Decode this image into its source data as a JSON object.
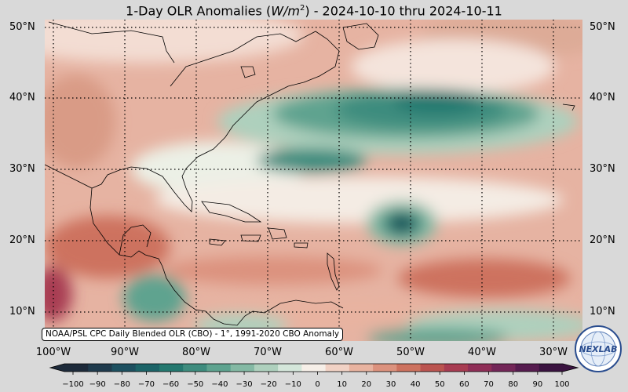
{
  "title": {
    "prefix": "1-Day OLR Anomalies (",
    "unit_main": "W/m",
    "unit_exp": "2",
    "suffix": ") - 2024-10-10 thru 2024-10-11"
  },
  "latitudes_left": [
    "50°N",
    "40°N",
    "30°N",
    "20°N",
    "10°N"
  ],
  "latitudes_right": [
    "50°N",
    "40°N",
    "30°N",
    "20°N",
    "10°N"
  ],
  "longitudes": [
    "100°W",
    "90°W",
    "80°W",
    "70°W",
    "60°W",
    "50°W",
    "40°W",
    "30°W"
  ],
  "source_label": "NOAA/PSL CPC Daily Blended OLR (CBO) - 1°, 1991-2020 CBO Anomaly",
  "colorbar": {
    "ticks": [
      "−100",
      "−90",
      "−80",
      "−70",
      "−60",
      "−50",
      "−40",
      "−30",
      "−20",
      "−10",
      "0",
      "10",
      "20",
      "30",
      "40",
      "50",
      "60",
      "70",
      "80",
      "90",
      "100"
    ],
    "colors": [
      "#1d2a3a",
      "#1f3b4d",
      "#1d5060",
      "#1c6468",
      "#24786f",
      "#3e8c7e",
      "#5ea38f",
      "#84b9a4",
      "#aed0bd",
      "#d4e6da",
      "#f6efe8",
      "#f1d2c5",
      "#e8b3a0",
      "#dc927e",
      "#cd725f",
      "#bb5450",
      "#a83c52",
      "#8f2e57",
      "#732658",
      "#561c4f",
      "#3a1340"
    ]
  },
  "logo": {
    "text": "NEXLAB",
    "icon": "nexlab-globe-logo"
  }
}
